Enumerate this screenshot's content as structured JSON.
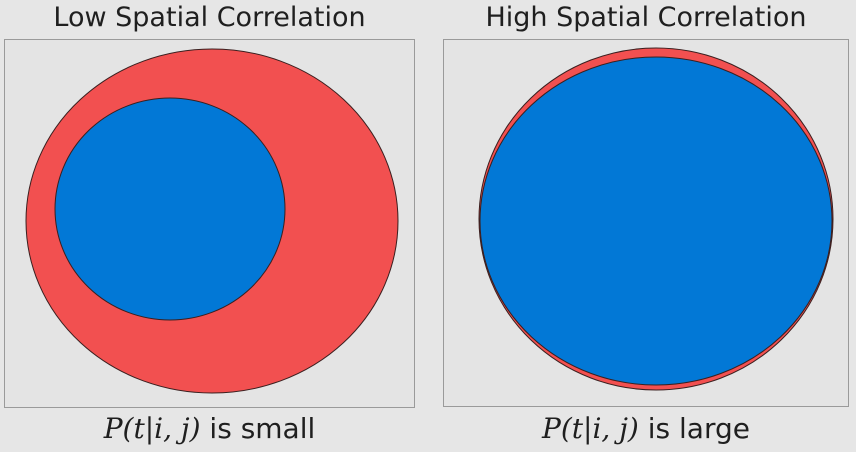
{
  "left_panel": {
    "title": "Low Spatial Correlation",
    "caption_math": "P(t|i, j)",
    "caption_text": "is small"
  },
  "right_panel": {
    "title": "High Spatial Correlation",
    "caption_math": "P(t|i, j)",
    "caption_text": "is large"
  },
  "colors": {
    "outer_region": "#f25050",
    "inner_region": "#0278d6",
    "outline": "#3a1f1f",
    "background": "#e6e6e6"
  }
}
